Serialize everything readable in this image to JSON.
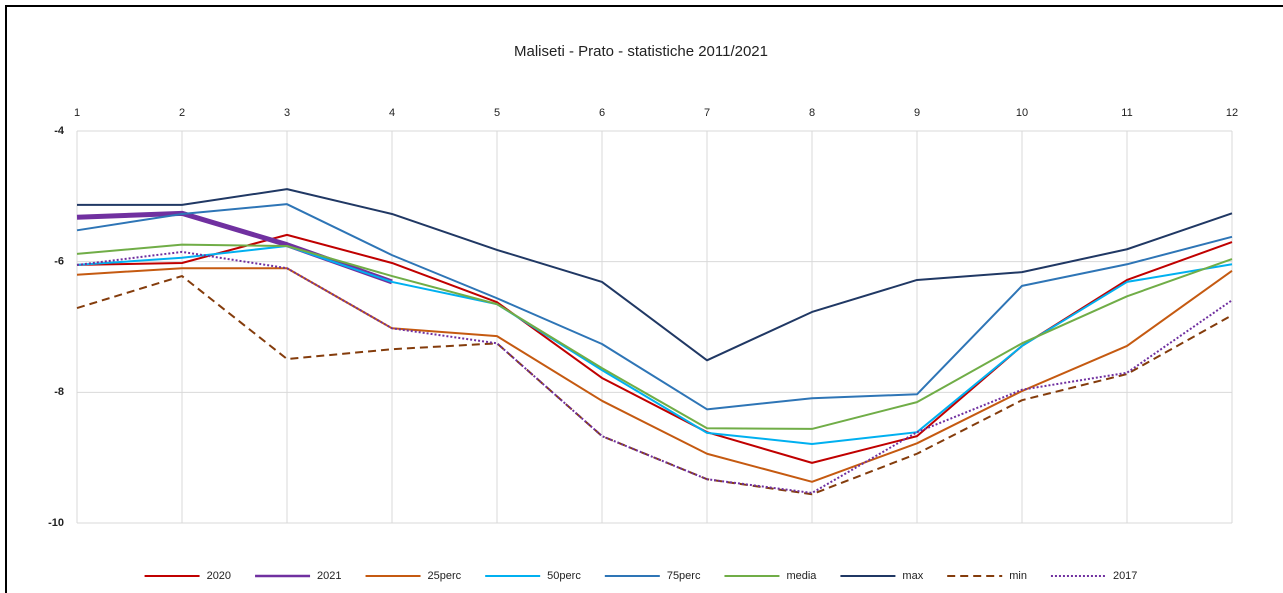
{
  "chart_data": {
    "type": "line",
    "title": "Maliseti  - Prato - statistiche 2011/2021",
    "x": [
      1,
      2,
      3,
      4,
      5,
      6,
      7,
      8,
      9,
      10,
      11,
      12
    ],
    "xlim": [
      1,
      12
    ],
    "xticks": [
      1,
      2,
      3,
      4,
      5,
      6,
      7,
      8,
      9,
      10,
      11,
      12
    ],
    "ylim": [
      -10,
      -4
    ],
    "yticks": [
      -4,
      -6,
      -8,
      -10
    ],
    "grid": true,
    "legend": "bottom",
    "series": [
      {
        "name": "2020",
        "color": "#c00000",
        "line_style": "solid",
        "values": [
          -6.05,
          -6.02,
          -5.59,
          -6.02,
          -6.62,
          -7.78,
          -8.61,
          -9.08,
          -8.67,
          -7.29,
          -6.28,
          -5.7
        ]
      },
      {
        "name": "2021",
        "color": "#7030a0",
        "line_style": "bold",
        "values": [
          -5.32,
          -5.26,
          -5.74,
          -6.31,
          null,
          null,
          null,
          null,
          null,
          null,
          null,
          null
        ]
      },
      {
        "name": "25perc",
        "color": "#c55a11",
        "line_style": "solid",
        "values": [
          -6.2,
          -6.1,
          -6.1,
          -7.02,
          -7.14,
          -8.13,
          -8.94,
          -9.37,
          -8.78,
          -7.98,
          -7.29,
          -6.14
        ]
      },
      {
        "name": "50perc",
        "color": "#00b0f0",
        "line_style": "solid",
        "values": [
          -6.05,
          -5.94,
          -5.76,
          -6.31,
          -6.65,
          -7.66,
          -8.62,
          -8.79,
          -8.61,
          -7.29,
          -6.31,
          -6.04
        ]
      },
      {
        "name": "75perc",
        "color": "#2e75b6",
        "line_style": "solid",
        "values": [
          -5.52,
          -5.27,
          -5.12,
          -5.9,
          -6.56,
          -7.26,
          -8.26,
          -8.09,
          -8.03,
          -6.37,
          -6.04,
          -5.62
        ]
      },
      {
        "name": "media",
        "color": "#70ad47",
        "line_style": "solid",
        "values": [
          -5.88,
          -5.74,
          -5.76,
          -6.22,
          -6.65,
          -7.63,
          -8.55,
          -8.56,
          -8.15,
          -7.25,
          -6.53,
          -5.96
        ]
      },
      {
        "name": "max",
        "color": "#203864",
        "line_style": "solid",
        "values": [
          -5.13,
          -5.13,
          -4.89,
          -5.27,
          -5.82,
          -6.31,
          -7.51,
          -6.77,
          -6.28,
          -6.16,
          -5.81,
          -5.26
        ]
      },
      {
        "name": "min",
        "color": "#843c0c",
        "line_style": "dashed",
        "values": [
          -6.71,
          -6.22,
          -7.49,
          -7.34,
          -7.25,
          -8.67,
          -9.33,
          -9.56,
          -8.94,
          -8.12,
          -7.72,
          -6.82
        ]
      },
      {
        "name": "2017",
        "color": "#7030a0",
        "line_style": "dotted",
        "values": [
          -6.05,
          -5.85,
          -6.1,
          -7.02,
          -7.25,
          -8.67,
          -9.33,
          -9.54,
          -8.61,
          -7.96,
          -7.7,
          -6.59
        ]
      }
    ]
  }
}
